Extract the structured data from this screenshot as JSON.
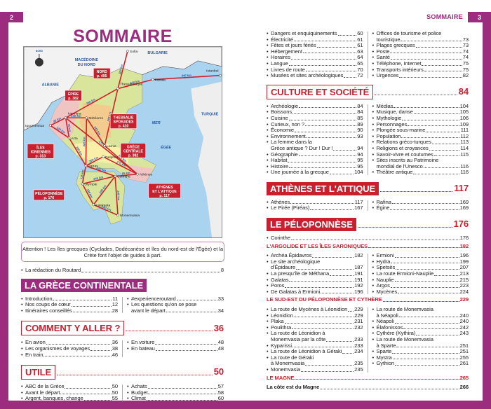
{
  "colors": {
    "accent": "#9b2c7e",
    "red": "#c8202f"
  },
  "left_page": {
    "number": "2",
    "title": "SOMMAIRE",
    "map": {
      "countries": [
        "MACÉDOINE",
        "DU NORD",
        "BULGARIE",
        "ALBANIE",
        "TURQUIE",
        "MER",
        "ÉGÉE",
        "NORD"
      ],
      "cities": [
        "Sofia",
        "Kavala",
        "Istanbul",
        "Thessalonique",
        "Ioannina",
        "Météores",
        "Igoumenitsa",
        "Arta",
        "Lamia",
        "Delphes",
        "Patras",
        "Athènes",
        "Corinthe",
        "Olympie",
        "Kalamata",
        "Monemvasia"
      ],
      "routes": [
        [
          "Thessalonique",
          "Sofia",
          "300 km"
        ],
        [
          "Thessalonique",
          "Kavala",
          "150 km"
        ],
        [
          "Kavala",
          "Istanbul",
          "440 km"
        ],
        [
          "Thessalonique",
          "Ioannina",
          "260 km"
        ],
        [
          "Thessalonique",
          "Lamia",
          "295 km"
        ],
        [
          "Ioannina",
          "Météores",
          "130 km"
        ],
        [
          "Ioannina",
          "Igoumenitsa",
          "80 km"
        ],
        [
          "Igoumenitsa",
          "Arta",
          "120 km"
        ],
        [
          "Ioannina",
          "Arta",
          "75 km"
        ],
        [
          "Météores",
          "Lamia",
          "145 km"
        ],
        [
          "Arta",
          "Patras",
          "160 km"
        ],
        [
          "Météores",
          "Patras",
          "320 km"
        ],
        [
          "Ioannina",
          "Athènes",
          "475 km"
        ],
        [
          "Lamia",
          "Athènes",
          "375 km"
        ],
        [
          "Patras",
          "Delphes",
          "200 km"
        ],
        [
          "Delphes",
          "Athènes",
          "170 km"
        ],
        [
          "Patras",
          "Corinthe",
          "132 km"
        ],
        [
          "Corinthe",
          "Athènes",
          "85 km"
        ],
        [
          "Patras",
          "Olympie",
          "115 km"
        ],
        [
          "Olympie",
          "Corinthe",
          "240 km"
        ],
        [
          "Olympie",
          "Kalamata",
          "185 km"
        ],
        [
          "Kalamata",
          "Corinthe",
          "190 km"
        ],
        [
          "Kalamata",
          "Monemvasia",
          "130 km"
        ],
        [
          "Corinthe",
          "Monemvasia",
          "240 km"
        ]
      ],
      "regions": [
        [
          "NORD",
          "p. 495"
        ],
        [
          "ÉPIRE",
          "p. 382"
        ],
        [
          "THESSALIE",
          "SPORADES",
          "p. 410"
        ],
        [
          "ÎLES",
          "IONIENNES",
          "p. 313"
        ],
        [
          "GRÈCE",
          "CENTRALE",
          "p. 382"
        ],
        [
          "PÉLOPONNÈSE",
          "p. 176"
        ],
        [
          "ATHÈNES",
          "ET L'ATTIQUE",
          "p. 117"
        ]
      ]
    },
    "note": "Attention ! Les îles grecques (Cyclades, Dodécanèse et îles du nord-est de l'Égée) et la Crète font l'objet de guides à part.",
    "redaction": {
      "label": "La rédaction du Routard",
      "page": "8"
    },
    "sections": [
      {
        "title": "LA GRÈCE CONTINENTALE",
        "style": "fill-p",
        "page": "",
        "left": [
          {
            "label": "Introduction",
            "page": "11"
          },
          {
            "label": "Nos coups de cœur",
            "page": "12"
          },
          {
            "label": "Itinéraires conseillés",
            "page": "28"
          }
        ],
        "right": [
          {
            "label": "#experienceroutard",
            "page": "33"
          },
          {
            "label": "Les questions qu'on se pose",
            "cont": "avant le départ",
            "page": "34"
          }
        ]
      },
      {
        "title": "COMMENT Y ALLER ?",
        "style": "out",
        "page": "36",
        "left": [
          {
            "label": "En avion",
            "page": "36"
          },
          {
            "label": "Les organismes de voyages",
            "page": "38"
          },
          {
            "label": "En train",
            "page": "46"
          }
        ],
        "right": [
          {
            "label": "En voiture",
            "page": "48"
          },
          {
            "label": "En bateau",
            "page": "48"
          }
        ]
      },
      {
        "title": "UTILE",
        "style": "out",
        "page": "50",
        "left": [
          {
            "label": "ABC de la Grèce",
            "page": "50"
          },
          {
            "label": "Avant le départ",
            "page": "50"
          },
          {
            "label": "Argent, banques, change",
            "page": "55"
          }
        ],
        "right": [
          {
            "label": "Achats",
            "page": "57"
          },
          {
            "label": "Budget",
            "page": "58"
          },
          {
            "label": "Climat",
            "page": "60"
          }
        ]
      }
    ]
  },
  "right_page": {
    "number": "3",
    "running_head": "SOMMAIRE",
    "utile_cont": {
      "left": [
        {
          "label": "Dangers et enquiquinements",
          "page": "60"
        },
        {
          "label": "Électricité",
          "page": "61"
        },
        {
          "label": "Fêtes et jours fériés",
          "page": "61"
        },
        {
          "label": "Hébergement",
          "page": "63"
        },
        {
          "label": "Horaires",
          "page": "64"
        },
        {
          "label": "Langue",
          "page": "65"
        },
        {
          "label": "Livres de route",
          "page": "70"
        },
        {
          "label": "Musées et sites archéologiques",
          "page": "72"
        }
      ],
      "right": [
        {
          "label": "Offices de tourisme et police",
          "cont": "touristique",
          "page": "73"
        },
        {
          "label": "Plages grecques",
          "page": "73"
        },
        {
          "label": "Poste",
          "page": "74"
        },
        {
          "label": "Santé",
          "page": "74"
        },
        {
          "label": "Téléphone, Internet",
          "page": "75"
        },
        {
          "label": "Transports intérieurs",
          "page": "75"
        },
        {
          "label": "Urgences",
          "page": "82"
        }
      ]
    },
    "sections": [
      {
        "title": "CULTURE ET SOCIÉTÉ",
        "style": "out",
        "page": "84",
        "left": [
          {
            "label": "Archéologie",
            "page": "84"
          },
          {
            "label": "Boissons",
            "page": "84"
          },
          {
            "label": "Cuisine",
            "page": "85"
          },
          {
            "label": "Curieux, non ?",
            "page": "89"
          },
          {
            "label": "Économie",
            "page": "90"
          },
          {
            "label": "Environnement",
            "page": "93"
          },
          {
            "label": "La femme dans la",
            "cont": "Grèce antique ? Dur ! Dur !",
            "page": "94"
          },
          {
            "label": "Géographie",
            "page": "94"
          },
          {
            "label": "Habitat",
            "page": "95"
          },
          {
            "label": "Histoire",
            "page": "95"
          },
          {
            "label": "Une journée à la grecque",
            "page": "104"
          }
        ],
        "right": [
          {
            "label": "Médias",
            "page": "104"
          },
          {
            "label": "Musique, danse",
            "page": "105"
          },
          {
            "label": "Mythologie",
            "page": "106"
          },
          {
            "label": "Personnages",
            "page": "109"
          },
          {
            "label": "Plongée sous-marine",
            "page": "111"
          },
          {
            "label": "Population",
            "page": "112"
          },
          {
            "label": "Relations gréco-turques",
            "page": "113"
          },
          {
            "label": "Religions et croyances",
            "page": "114"
          },
          {
            "label": "Savoir-vivre et coutumes",
            "page": "115"
          },
          {
            "label": "Sites inscrits au Patrimoine",
            "cont": "mondial de l'Unesco",
            "page": "116"
          },
          {
            "label": "Théâtre antique",
            "page": "116"
          }
        ]
      },
      {
        "title": "ATHÈNES ET L'ATTIQUE",
        "style": "fill-r",
        "page": "117",
        "left": [
          {
            "label": "Athènes",
            "page": "117"
          },
          {
            "label": "Le Pirée (Piréas)",
            "page": "167"
          }
        ],
        "right": [
          {
            "label": "Rafina",
            "page": "169"
          },
          {
            "label": "Égine",
            "page": "169"
          }
        ]
      },
      {
        "title": "LE PÉLOPONNÈSE",
        "style": "fill-r",
        "page": "176",
        "full": [
          {
            "label": "Corinthe",
            "page": "176"
          }
        ],
        "subs": [
          {
            "title": "L'ARGOLIDE ET LES ÎLES SARONIQUES",
            "page": "182",
            "left": [
              {
                "label": "Archéa Épidavros",
                "page": "182"
              },
              {
                "label": "Le site archéologique",
                "cont": "d'Épidaure",
                "page": "187"
              },
              {
                "label": "La presqu'île de Méthana",
                "page": "191"
              },
              {
                "label": "Galatas",
                "page": "191"
              },
              {
                "label": "Poros",
                "page": "192"
              },
              {
                "label": "De Galatas à Ermioni",
                "page": "196"
              }
            ],
            "right": [
              {
                "label": "Ermioni",
                "page": "196"
              },
              {
                "label": "Hydra",
                "page": "199"
              },
              {
                "label": "Spetsès",
                "page": "207"
              },
              {
                "label": "La route Ermioni-Nauplie",
                "page": "213"
              },
              {
                "label": "Nauplie",
                "page": "215"
              },
              {
                "label": "Argos",
                "page": "223"
              },
              {
                "label": "Mycènes",
                "page": "224"
              }
            ]
          },
          {
            "title": "LE SUD-EST DU PÉLOPONNÈSE ET CYTHÈRE",
            "page": "229",
            "left": [
              {
                "label": "La route de Mycènes à Léonidion",
                "page": "229"
              },
              {
                "label": "Léonidion",
                "page": "229"
              },
              {
                "label": "Plaka",
                "page": "231"
              },
              {
                "label": "Poulithra",
                "page": "232"
              },
              {
                "label": "La route de Léonidion à",
                "cont": "Monemvasia par la côte",
                "page": "233"
              },
              {
                "label": "Kyparissi",
                "page": "233"
              },
              {
                "label": "La route de Léonidion à Géraki",
                "page": "234"
              },
              {
                "label": "La route de Géraki",
                "cont": "à Monemvasia",
                "page": "235"
              },
              {
                "label": "Monemvasia",
                "page": "235"
              }
            ],
            "right": [
              {
                "label": "La route de Monemvasia",
                "cont": "à Néapoli",
                "page": "240"
              },
              {
                "label": "Néapoli",
                "page": "240"
              },
              {
                "label": "Élafonissos",
                "page": "242"
              },
              {
                "label": "Cythère (Kythira)",
                "page": "243"
              },
              {
                "label": "La route de Monemvasia",
                "cont": "à Sparte",
                "page": "251"
              },
              {
                "label": "Sparte",
                "page": "251"
              },
              {
                "label": "Mystra",
                "page": "255"
              },
              {
                "label": "Gythion",
                "page": "261"
              }
            ]
          },
          {
            "title": "LE MAGNE",
            "page": "265"
          }
        ],
        "last": {
          "label": "La côte est du Magne",
          "page": "266"
        }
      }
    ]
  }
}
